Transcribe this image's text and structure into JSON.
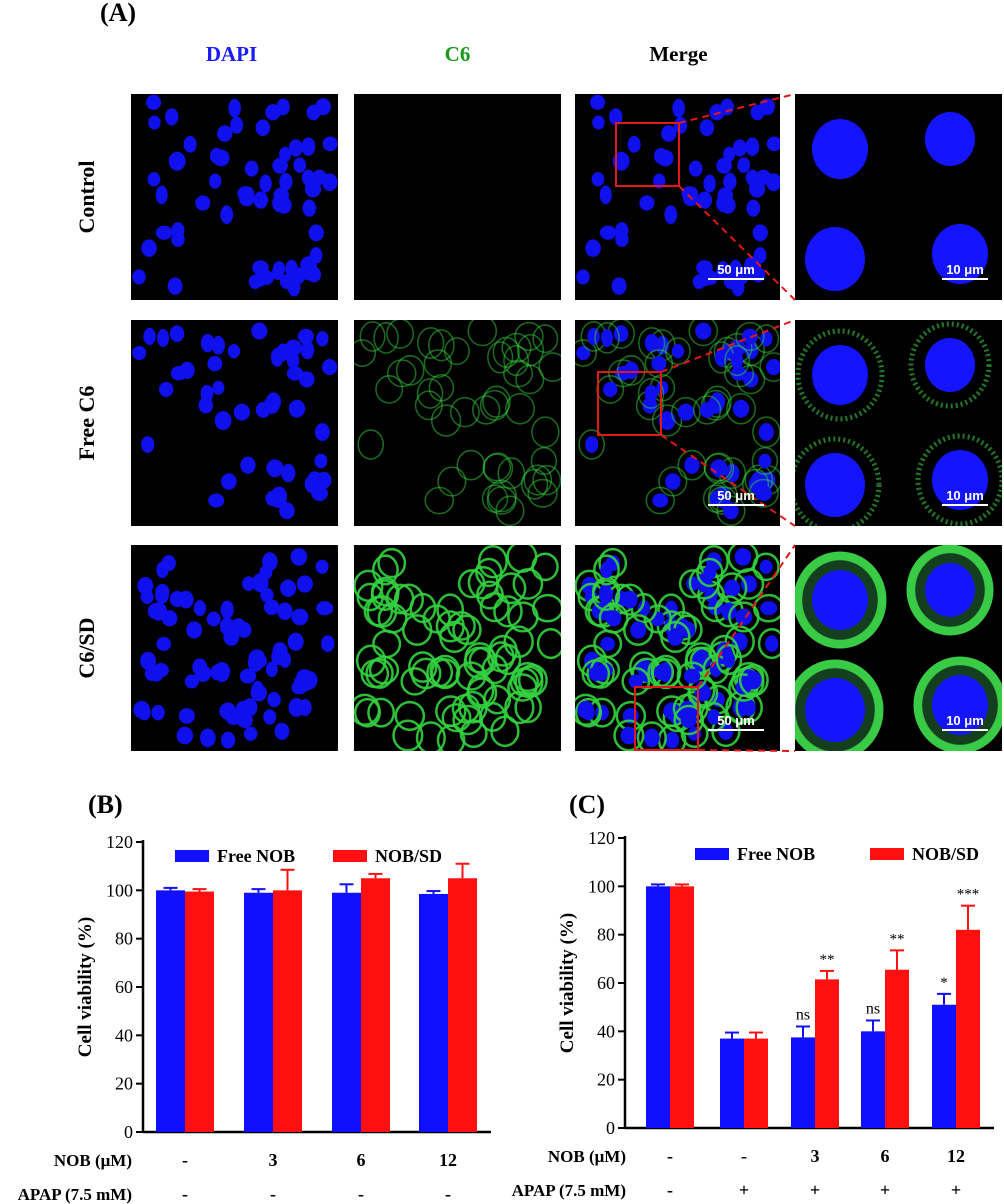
{
  "panel_a": {
    "label": "(A)",
    "columns": [
      "DAPI",
      "C6",
      "Merge",
      ""
    ],
    "column_colors": [
      "#1a1aff",
      "#1a9a1a",
      "#000000"
    ],
    "rows": [
      {
        "name": "Control",
        "c6_level": 0.0,
        "merge_scale": "50 μm",
        "zoom_scale": "10 μm"
      },
      {
        "name": "Free C6",
        "c6_level": 0.35,
        "merge_scale": "50 μm",
        "zoom_scale": "10 μm"
      },
      {
        "name": "C6/SD",
        "c6_level": 1.0,
        "merge_scale": "50 μm",
        "zoom_scale": "10 μm"
      }
    ]
  },
  "panel_b": {
    "label": "(B)",
    "chart_data": {
      "type": "bar",
      "ylabel": "Cell viability (%)",
      "ylim": [
        0,
        120
      ],
      "yticks": [
        0,
        20,
        40,
        60,
        80,
        100,
        120
      ],
      "legend": "top",
      "categories": [
        "-",
        "3",
        "6",
        "12"
      ],
      "series": [
        {
          "name": "Free NOB",
          "color": "#1010ff",
          "values": [
            100,
            99,
            99,
            98.5
          ],
          "errors": [
            1,
            1.5,
            3.5,
            1.2
          ]
        },
        {
          "name": "NOB/SD",
          "color": "#ff1010",
          "values": [
            99.5,
            100,
            105,
            105
          ],
          "errors": [
            1,
            8.5,
            1.8,
            6
          ]
        }
      ],
      "row_labels": [
        {
          "label": "NOB (μM)",
          "values": [
            "-",
            "3",
            "6",
            "12"
          ]
        },
        {
          "label": "APAP (7.5 mM)",
          "values": [
            "-",
            "-",
            "-",
            "-"
          ]
        }
      ]
    }
  },
  "panel_c": {
    "label": "(C)",
    "chart_data": {
      "type": "bar",
      "ylabel": "Cell viability (%)",
      "ylim": [
        0,
        120
      ],
      "yticks": [
        0,
        20,
        40,
        60,
        80,
        100,
        120
      ],
      "legend": "top",
      "categories": [
        "-",
        "-",
        "3",
        "6",
        "12"
      ],
      "series": [
        {
          "name": "Free NOB",
          "color": "#1010ff",
          "values": [
            100,
            37,
            37.5,
            40,
            51
          ],
          "errors": [
            0.8,
            2.5,
            4.5,
            4.5,
            4.5
          ],
          "annotations": [
            "",
            "",
            "ns",
            "ns",
            "*"
          ]
        },
        {
          "name": "NOB/SD",
          "color": "#ff1010",
          "values": [
            100,
            37,
            61.5,
            65.5,
            82
          ],
          "errors": [
            0.8,
            2.5,
            3.5,
            8,
            10
          ],
          "annotations": [
            "",
            "",
            "**",
            "**",
            "***"
          ]
        }
      ],
      "row_labels": [
        {
          "label": "NOB (μM)",
          "values": [
            "-",
            "-",
            "3",
            "6",
            "12"
          ]
        },
        {
          "label": "APAP (7.5 mM)",
          "values": [
            "-",
            "+",
            "+",
            "+",
            "+"
          ]
        }
      ]
    }
  }
}
